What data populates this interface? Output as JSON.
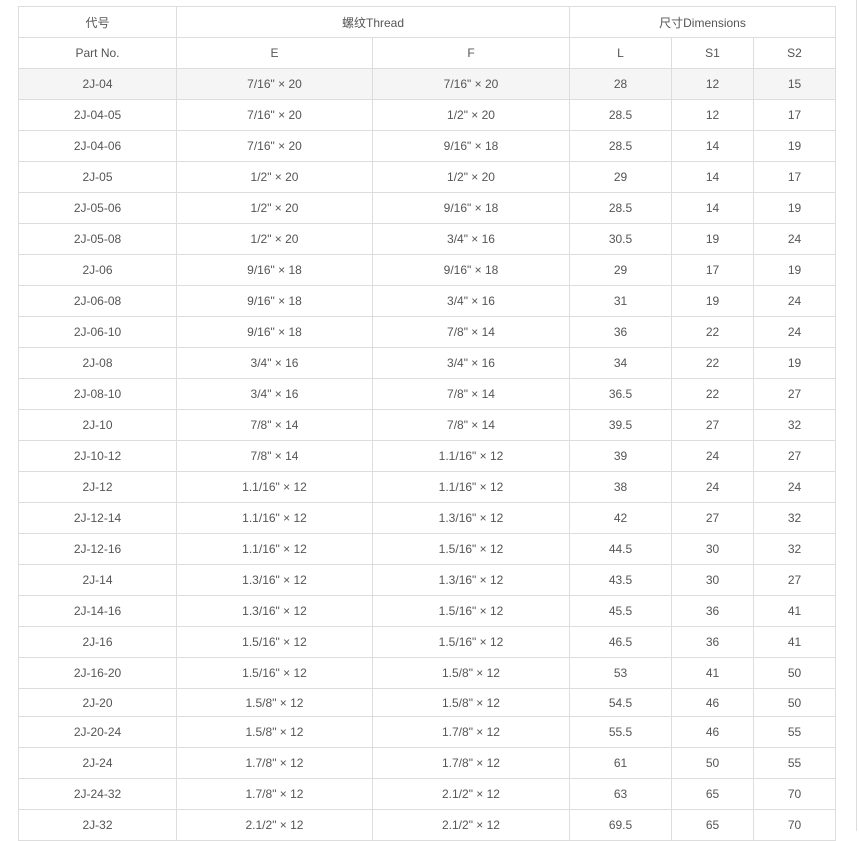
{
  "header": {
    "part_no_cn": "代号",
    "part_no_en": "Part No.",
    "thread": "螺纹Thread",
    "dimensions": "尺寸Dimensions",
    "cols": [
      "E",
      "F",
      "L",
      "S1",
      "S2"
    ]
  },
  "rows": [
    [
      "2J-04",
      "7/16\" × 20",
      "7/16\" × 20",
      "28",
      "12",
      "15"
    ],
    [
      "2J-04-05",
      "7/16\" × 20",
      "1/2\" × 20",
      "28.5",
      "12",
      "17"
    ],
    [
      "2J-04-06",
      "7/16\" × 20",
      "9/16\" × 18",
      "28.5",
      "14",
      "19"
    ],
    [
      "2J-05",
      "1/2\" × 20",
      "1/2\" × 20",
      "29",
      "14",
      "17"
    ],
    [
      "2J-05-06",
      "1/2\" × 20",
      "9/16\" × 18",
      "28.5",
      "14",
      "19"
    ],
    [
      "2J-05-08",
      "1/2\" × 20",
      "3/4\" × 16",
      "30.5",
      "19",
      "24"
    ],
    [
      "2J-06",
      "9/16\" × 18",
      "9/16\" × 18",
      "29",
      "17",
      "19"
    ],
    [
      "2J-06-08",
      "9/16\" × 18",
      "3/4\" × 16",
      "31",
      "19",
      "24"
    ],
    [
      "2J-06-10",
      "9/16\" × 18",
      "7/8\" × 14",
      "36",
      "22",
      "24"
    ],
    [
      "2J-08",
      "3/4\" × 16",
      "3/4\" × 16",
      "34",
      "22",
      "19"
    ],
    [
      "2J-08-10",
      "3/4\" × 16",
      "7/8\" × 14",
      "36.5",
      "22",
      "27"
    ],
    [
      "2J-10",
      "7/8\" × 14",
      "7/8\" × 14",
      "39.5",
      "27",
      "32"
    ],
    [
      "2J-10-12",
      "7/8\" × 14",
      "1.1/16\" × 12",
      "39",
      "24",
      "27"
    ],
    [
      "2J-12",
      "1.1/16\" × 12",
      "1.1/16\" × 12",
      "38",
      "24",
      "24"
    ],
    [
      "2J-12-14",
      "1.1/16\" × 12",
      "1.3/16\" × 12",
      "42",
      "27",
      "32"
    ],
    [
      "2J-12-16",
      "1.1/16\" × 12",
      "1.5/16\" × 12",
      "44.5",
      "30",
      "32"
    ],
    [
      "2J-14",
      "1.3/16\" × 12",
      "1.3/16\" × 12",
      "43.5",
      "30",
      "27"
    ],
    [
      "2J-14-16",
      "1.3/16\" × 12",
      "1.5/16\" × 12",
      "45.5",
      "36",
      "41"
    ],
    [
      "2J-16",
      "1.5/16\" × 12",
      "1.5/16\" × 12",
      "46.5",
      "36",
      "41"
    ],
    [
      "2J-16-20",
      "1.5/16\" × 12",
      "1.5/8\" × 12",
      "53",
      "41",
      "50"
    ],
    [
      "2J-20",
      "1.5/8\" × 12",
      "1.5/8\" × 12",
      "54.5",
      "46",
      "50"
    ],
    [
      "2J-20-24",
      "1.5/8\" × 12",
      "1.7/8\" × 12",
      "55.5",
      "46",
      "55"
    ],
    [
      "2J-24",
      "1.7/8\" × 12",
      "1.7/8\" × 12",
      "61",
      "50",
      "55"
    ],
    [
      "2J-24-32",
      "1.7/8\" × 12",
      "2.1/2\" × 12",
      "63",
      "65",
      "70"
    ],
    [
      "2J-32",
      "2.1/2\" × 12",
      "2.1/2\" × 12",
      "69.5",
      "65",
      "70"
    ]
  ]
}
